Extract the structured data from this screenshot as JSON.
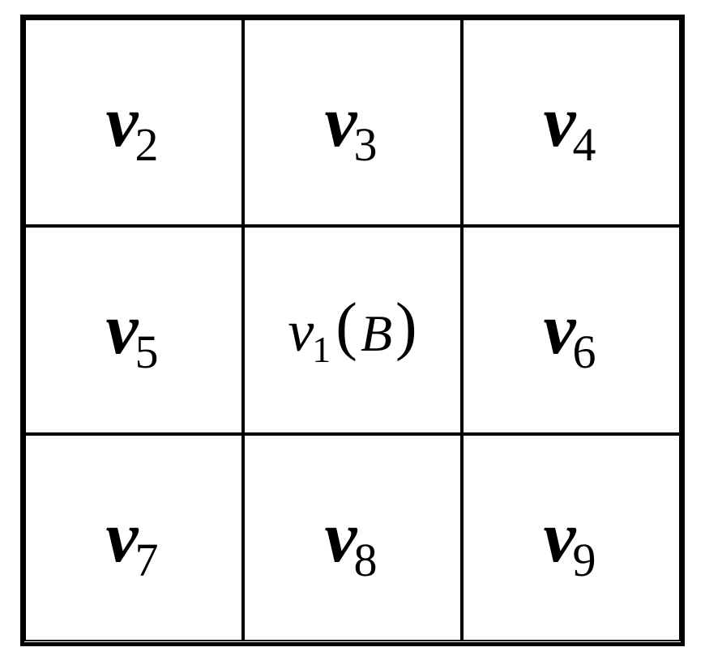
{
  "grid": {
    "type": "table",
    "rows": 3,
    "cols": 3,
    "border_color": "#000000",
    "outer_border_width": 5,
    "inner_border_width": 2.5,
    "background_color": "#ffffff",
    "text_color": "#000000",
    "cells": [
      {
        "var": "v",
        "sub": "2",
        "is_center": false
      },
      {
        "var": "v",
        "sub": "3",
        "is_center": false
      },
      {
        "var": "v",
        "sub": "4",
        "is_center": false
      },
      {
        "var": "v",
        "sub": "5",
        "is_center": false
      },
      {
        "var": "v",
        "sub": "1",
        "paren_value": "B",
        "is_center": true
      },
      {
        "var": "v",
        "sub": "6",
        "is_center": false
      },
      {
        "var": "v",
        "sub": "7",
        "is_center": false
      },
      {
        "var": "v",
        "sub": "8",
        "is_center": false
      },
      {
        "var": "v",
        "sub": "9",
        "is_center": false
      }
    ],
    "outer_label_fontsize": 90,
    "outer_sub_fontsize": 58,
    "center_label_fontsize": 72,
    "center_sub_fontsize": 46,
    "center_paren_fontsize": 80,
    "center_value_fontsize": 64,
    "font_family": "Georgia, Times New Roman, serif",
    "font_style": "italic"
  }
}
